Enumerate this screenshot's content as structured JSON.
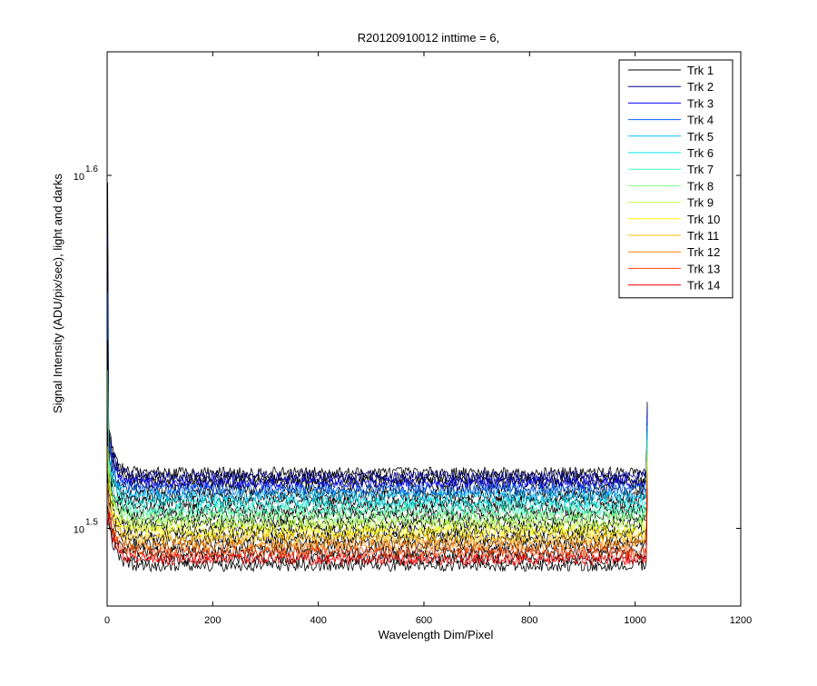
{
  "chart_data": {
    "type": "line",
    "title": "R20120910012 inttime = 6,",
    "xlabel": "Wavelength Dim/Pixel",
    "ylabel": "Signal Intensity (ADU/pix/sec), light and darks",
    "xlim": [
      0,
      1200
    ],
    "ylim_log10": [
      1.478,
      1.635
    ],
    "yscale": "log",
    "x_ticks": [
      {
        "value": 0,
        "label": "0"
      },
      {
        "value": 200,
        "label": "200"
      },
      {
        "value": 400,
        "label": "400"
      },
      {
        "value": 600,
        "label": "600"
      },
      {
        "value": 800,
        "label": "800"
      },
      {
        "value": 1000,
        "label": "1000"
      },
      {
        "value": 1200,
        "label": "1200"
      }
    ],
    "y_ticks": [
      {
        "log10": 1.5,
        "base": "10",
        "exponent": "1.5"
      },
      {
        "log10": 1.6,
        "base": "10",
        "exponent": "1.6"
      }
    ],
    "grid": false,
    "legend_position": "top-right",
    "x_extent": [
      1,
      1024
    ],
    "series": [
      {
        "name": "Trk 1",
        "color": "#000000",
        "level_log10": 1.5158
      },
      {
        "name": "Trk 2",
        "color": "#00008f",
        "level_log10": 1.5148
      },
      {
        "name": "Trk 3",
        "color": "#0000ff",
        "level_log10": 1.5128
      },
      {
        "name": "Trk 4",
        "color": "#0060ff",
        "level_log10": 1.511
      },
      {
        "name": "Trk 5",
        "color": "#00bfff",
        "level_log10": 1.5092
      },
      {
        "name": "Trk 6",
        "color": "#00e0e0",
        "level_log10": 1.5072
      },
      {
        "name": "Trk 7",
        "color": "#40ffbf",
        "level_log10": 1.5052
      },
      {
        "name": "Trk 8",
        "color": "#80ff80",
        "level_log10": 1.5032
      },
      {
        "name": "Trk 9",
        "color": "#c0ff40",
        "level_log10": 1.5012
      },
      {
        "name": "Trk 10",
        "color": "#ffff00",
        "level_log10": 1.4992
      },
      {
        "name": "Trk 11",
        "color": "#ffbf00",
        "level_log10": 1.4972
      },
      {
        "name": "Trk 12",
        "color": "#ff8000",
        "level_log10": 1.4952
      },
      {
        "name": "Trk 13",
        "color": "#ff4000",
        "level_log10": 1.4932
      },
      {
        "name": "Trk 14",
        "color": "#ff0000",
        "level_log10": 1.4912
      }
    ],
    "dark_series_color": "#000000"
  }
}
